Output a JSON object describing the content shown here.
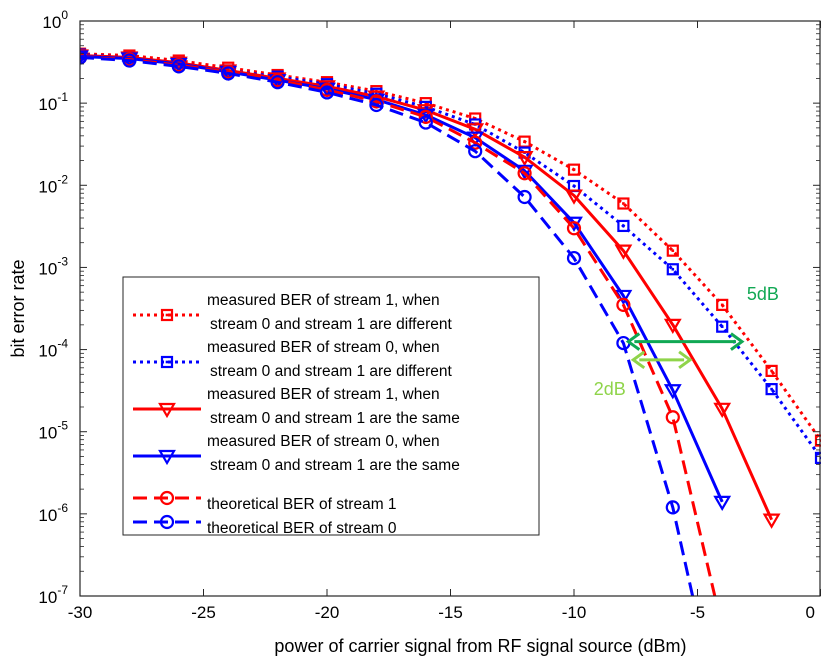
{
  "chart_data": {
    "type": "line",
    "xlabel": "power of carrier signal from RF signal source (dBm)",
    "ylabel": "bit error rate",
    "xlim": [
      -30,
      0
    ],
    "ylim": [
      1e-07,
      1
    ],
    "yscale": "log",
    "xticks": [
      -30,
      -25,
      -20,
      -15,
      -10,
      -5,
      0
    ],
    "xtick_labels": [
      "-30",
      "-25",
      "-20",
      "-15",
      "-10",
      "-5",
      "0"
    ],
    "yticks": [
      1,
      0.1,
      0.01,
      0.001,
      0.0001,
      1e-05,
      1e-06,
      1e-07
    ],
    "ytick_labels": [
      {
        "base": "10",
        "exp": "0"
      },
      {
        "base": "10",
        "exp": "-1"
      },
      {
        "base": "10",
        "exp": "-2"
      },
      {
        "base": "10",
        "exp": "-3"
      },
      {
        "base": "10",
        "exp": "-4"
      },
      {
        "base": "10",
        "exp": "-5"
      },
      {
        "base": "10",
        "exp": "-6"
      },
      {
        "base": "10",
        "exp": "-7"
      }
    ],
    "grid": false,
    "legend_position": "lower-left",
    "series": [
      {
        "name_lines": [
          "measured BER of stream 1, when",
          "stream 0 and stream 1 are different"
        ],
        "color": "#ff0000",
        "line": "dotted",
        "marker": "square-dotted",
        "x": [
          -30,
          -28,
          -26,
          -24,
          -22,
          -20,
          -18,
          -16,
          -14,
          -12,
          -10,
          -8,
          -6,
          -4,
          -2,
          0
        ],
        "y": [
          0.4,
          0.38,
          0.33,
          0.27,
          0.22,
          0.18,
          0.14,
          0.1,
          0.065,
          0.034,
          0.0155,
          0.006,
          0.0016,
          0.00035,
          5.5e-05,
          7.8e-06
        ]
      },
      {
        "name_lines": [
          "measured BER of stream 0, when",
          "stream 0 and stream 1 are different"
        ],
        "color": "#0000ff",
        "line": "dotted",
        "marker": "square-dotted",
        "x": [
          -30,
          -28,
          -26,
          -24,
          -22,
          -20,
          -18,
          -16,
          -14,
          -12,
          -10,
          -8,
          -6,
          -4,
          -2,
          0
        ],
        "y": [
          0.39,
          0.36,
          0.31,
          0.25,
          0.21,
          0.17,
          0.13,
          0.09,
          0.055,
          0.025,
          0.0098,
          0.0032,
          0.00095,
          0.00019,
          3.3e-05,
          4.8e-06
        ]
      },
      {
        "name_lines": [
          "measured BER of stream 1, when",
          "stream 0 and stream 1 are the same"
        ],
        "color": "#ff0000",
        "line": "solid",
        "marker": "triangle-down",
        "x": [
          -30,
          -28,
          -26,
          -24,
          -22,
          -20,
          -18,
          -16,
          -14,
          -12,
          -10,
          -8,
          -6,
          -4,
          -2
        ],
        "y": [
          0.38,
          0.36,
          0.31,
          0.25,
          0.2,
          0.16,
          0.12,
          0.082,
          0.048,
          0.022,
          0.0075,
          0.0016,
          0.0002,
          1.9e-05,
          8.5e-07
        ]
      },
      {
        "name_lines": [
          "measured BER of stream 0, when",
          "stream 0 and stream 1 are the same"
        ],
        "color": "#0000ff",
        "line": "solid",
        "marker": "triangle-down",
        "x": [
          -30,
          -28,
          -26,
          -24,
          -22,
          -20,
          -18,
          -16,
          -14,
          -12,
          -10,
          -8,
          -6,
          -4
        ],
        "y": [
          0.37,
          0.35,
          0.3,
          0.24,
          0.19,
          0.15,
          0.11,
          0.072,
          0.038,
          0.015,
          0.0035,
          0.00045,
          3.2e-05,
          1.4e-06
        ]
      },
      {
        "name_lines": [
          "theoretical BER of stream 1"
        ],
        "color": "#ff0000",
        "line": "dashed",
        "marker": "circle",
        "x": [
          -30,
          -28,
          -26,
          -24,
          -22,
          -20,
          -18,
          -16,
          -14,
          -12,
          -10,
          -8,
          -6,
          -4.3
        ],
        "y": [
          0.36,
          0.34,
          0.29,
          0.24,
          0.19,
          0.145,
          0.105,
          0.068,
          0.033,
          0.014,
          0.003,
          0.00035,
          1.5e-05,
          1e-07
        ]
      },
      {
        "name_lines": [
          "theoretical BER of stream 0"
        ],
        "color": "#0000ff",
        "line": "dashed",
        "marker": "circle",
        "x": [
          -30,
          -28,
          -26,
          -24,
          -22,
          -20,
          -18,
          -16,
          -14,
          -12,
          -10,
          -8,
          -6,
          -5.2
        ],
        "y": [
          0.36,
          0.33,
          0.28,
          0.23,
          0.18,
          0.135,
          0.095,
          0.058,
          0.026,
          0.0072,
          0.0013,
          0.00012,
          1.2e-06,
          1e-07
        ]
      }
    ],
    "annotations": [
      {
        "text": "5dB",
        "color": "#11a854",
        "x_from": -7.8,
        "x_to": -3.2,
        "y": 0.000125,
        "label_x": -3,
        "label_y": 0.0004
      },
      {
        "text": "2dB",
        "color": "#8fd44a",
        "x_from": -7.6,
        "x_to": -5.3,
        "y": 7.5e-05,
        "label_x": -9.2,
        "label_y": 2.8e-05
      }
    ]
  }
}
